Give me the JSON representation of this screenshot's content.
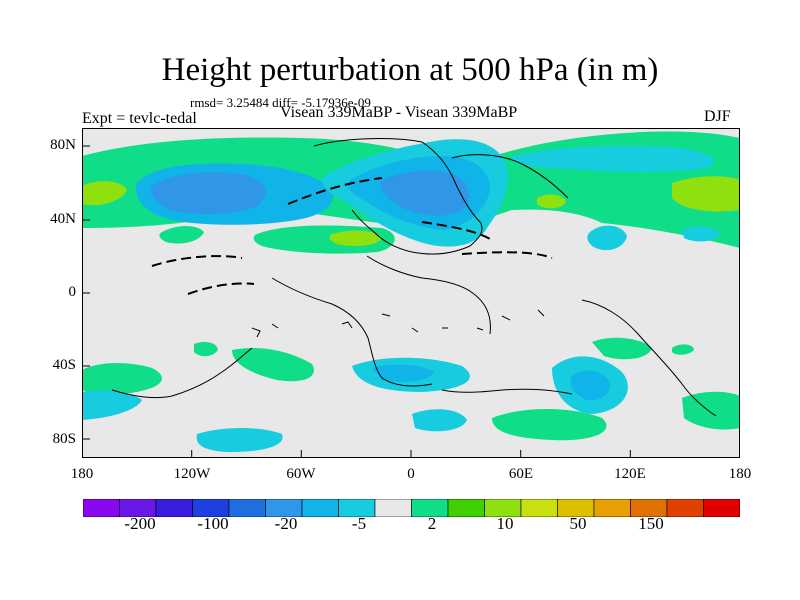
{
  "title": "Height perturbation at 500 hPa (in m)",
  "stats": "rmsd= 3.25484 diff= -5.17936e-09",
  "expt_label": "Expt = tevlc-tedal",
  "subtitle": "Visean 339MaBP - Visean 339MaBP",
  "season": "DJF",
  "lat_ticks": [
    "80N",
    "40N",
    "0",
    "40S",
    "80S"
  ],
  "lon_ticks": [
    "180",
    "120W",
    "60W",
    "0",
    "60E",
    "120E",
    "180"
  ],
  "colorbar": {
    "labels": [
      "-200",
      "-100",
      "-20",
      "-5",
      "2",
      "10",
      "50",
      "150"
    ],
    "colors": [
      "#8a08f0",
      "#6a18e8",
      "#3a1ee0",
      "#1f40e0",
      "#1f6fe0",
      "#2f96e8",
      "#10b4e8",
      "#18cce0",
      "#e8e8e8",
      "#10dd88",
      "#40d000",
      "#90e010",
      "#c8e010",
      "#dcc000",
      "#e8a000",
      "#e07000",
      "#e04000",
      "#e00000"
    ]
  },
  "field_colors": {
    "background": "#e8e8e8",
    "light_blue": "#18cce0",
    "medium_blue": "#10b4e8",
    "dark_blue": "#2f96e8",
    "green": "#10dd88",
    "yellow_green": "#90e010"
  }
}
